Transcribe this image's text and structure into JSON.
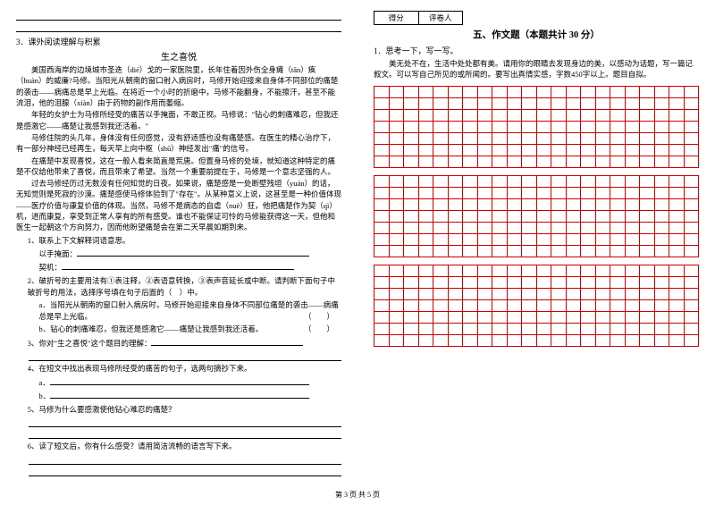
{
  "left": {
    "q3_label": "3．课外阅读理解与积累",
    "story_title": "生之喜悦",
    "p1": "美国西海岸的边境城市圣迭（dié）戈的一家医院里，长年住着因外伤全身瘫（tān）痪（huàn）的威廉?马修。当阳光从朝南的窗口射入病房时，马修开始迎接来自身体不同部位的痛楚的袭击——病痛总是早上光临。在将近一个小时的折磨中，马修不能翻身，不能擦汗，甚至不能流泪，他的泪腺（xiàn）由于药物的副作用而萎缩。",
    "p2": "年轻的女护士为马修所经受的痛苦以手掩面，不敢正视。马修说：\"钻心的刺痛难忍，但我还是感激它——痛楚让我感到我还活着。\"",
    "p3": "马修住院的头几年，身体没有任何感觉，没有舒适感也没有痛楚感。在医生的精心治疗下，有一部分神经已经再生，每天早上向中枢（shū）神经发出\"痛\"的信号。",
    "p4": "在痛楚中发现喜悦，这在一般人看来简直是荒唐。但置身马修的处境，就知道这种特定的痛楚不仅给他带来了喜悦，而且带来了希望。当然一个重要前提在于，马修是一个意志坚强的人。",
    "p5": "过去马修经历过无数没有任何知觉的日夜。如果说，痛楚感是一处断壁残垣（yuán）的话，无知觉则是死寂的沙漠。痛楚感使马修体验到了\"存在\"。从某种意义上说，这甚至是一种价值体现——医疗价值与康复价值的体现。当然，马修不是病态的自虐（nuè）狂，他把痛楚作为契（qì）机，进而康复，享受到正常人享有的所有感受。谁也不能保证可怜的马修能获得这一天，但他和医生一起朝这个方向努力，因而他盼望痛楚会在第二天早晨如期到来。",
    "q1": "1、联系上下文解释词语意思。",
    "q1a": "以手掩面：",
    "q1b": "契机：",
    "q2": "2、破折号的主要用法有①表注释，②表语意转换，③表声音延长或中断。请判断下面句子中破折号的用法，选择序号填在句子后面的（　）中。",
    "q2a": "a．当阳光从朝南的窗口射入病房时，马修开始迎接来自身体不同部位痛楚的袭击——病痛总是早上光临。",
    "q2b": "b．钻心的刺痛难忍，但我还是感激它——痛楚让我感到我还活着。",
    "q3": "3、你对\"生之喜悦\"这个题目的理解：",
    "q4": "4、在短文中找出表现马修所经受的痛苦的句子，选两句摘抄下来。",
    "q4a": "a．",
    "q4b": "b．",
    "q5": "5、马修为什么要感激使他钻心难忍的痛楚？",
    "q6": "6、读了短文后，你有什么感受？请用简洁流畅的语言写下来。",
    "paren": "（　　）"
  },
  "right": {
    "score_label1": "得分",
    "score_label2": "评卷人",
    "section_title": "五、作文题（本题共计 30 分）",
    "q1_label": "1．思考一下，写一写。",
    "prompt": "美无处不在，生活中处处都有美。请用你的眼睛去发现身边的美，以感动为话题，写一篇记叙文。可以写自己所见的或所闻的。要写出真情实感，字数450字以上。题目自拟。",
    "grid": {
      "rows_per_block": 7,
      "cols": 22,
      "blocks": 3,
      "border_color": "#c00"
    }
  },
  "footer": "第 3 页  共 5 页"
}
